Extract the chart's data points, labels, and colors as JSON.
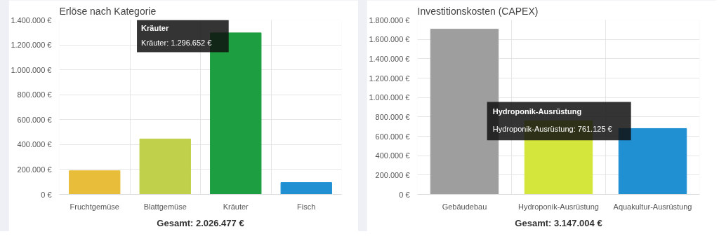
{
  "chart_data": [
    {
      "type": "bar",
      "title": "Erlöse nach Kategorie",
      "categories": [
        "Fruchtgemüse",
        "Blattgemüse",
        "Kräuter",
        "Fisch"
      ],
      "values": [
        190000,
        445000,
        1296652,
        95000
      ],
      "colors": [
        "#e8bd3a",
        "#c0d04a",
        "#1d9e40",
        "#2190d3"
      ],
      "ylim": [
        0,
        1400000
      ],
      "yticks": [
        {
          "value": 0,
          "label": "0 €"
        },
        {
          "value": 200000,
          "label": "200.000 €"
        },
        {
          "value": 400000,
          "label": "400.000 €"
        },
        {
          "value": 600000,
          "label": "600.000 €"
        },
        {
          "value": 800000,
          "label": "800.000 €"
        },
        {
          "value": 1000000,
          "label": "1.000.000 €"
        },
        {
          "value": 1200000,
          "label": "1.200.000 €"
        },
        {
          "value": 1400000,
          "label": "1.400.000 €"
        }
      ],
      "grid": true,
      "annotations": [
        "Kräuter",
        "Kräuter: 1.296.652 €",
        "Gesamt: 2.026.477 €"
      ]
    },
    {
      "type": "bar",
      "title": "Investitionskosten (CAPEX)",
      "categories": [
        "Gebäudebau",
        "Hydroponik-Ausrüstung",
        "Aquakultur-Ausrüstung"
      ],
      "values": [
        1705000,
        761125,
        680000
      ],
      "colors": [
        "#9e9e9e",
        "#d4e63c",
        "#2190d3"
      ],
      "ylim": [
        0,
        1800000
      ],
      "yticks": [
        {
          "value": 0,
          "label": "0 €"
        },
        {
          "value": 200000,
          "label": "200.000 €"
        },
        {
          "value": 400000,
          "label": "400.000 €"
        },
        {
          "value": 600000,
          "label": "600.000 €"
        },
        {
          "value": 800000,
          "label": "800.000 €"
        },
        {
          "value": 1000000,
          "label": "1.000.000 €"
        },
        {
          "value": 1200000,
          "label": "1.200.000 €"
        },
        {
          "value": 1400000,
          "label": "1.400.000 €"
        },
        {
          "value": 1600000,
          "label": "1.600.000 €"
        },
        {
          "value": 1800000,
          "label": "1.800.000 €"
        }
      ],
      "grid": true,
      "annotations": [
        "Hydroponik-Ausrüstung",
        "Hydroponik-Ausrüstung: 761.125 €",
        "Gesamt: 3.147.004 €"
      ]
    }
  ]
}
